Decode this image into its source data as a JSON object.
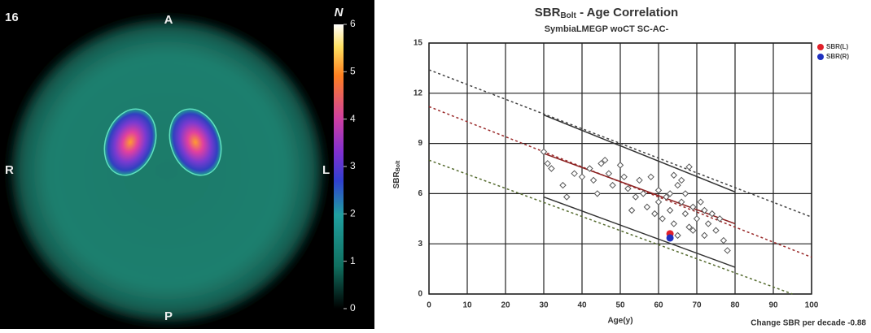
{
  "scan": {
    "slice": "16",
    "anterior": "A",
    "posterior": "P",
    "right": "R",
    "left": "L",
    "colorbar_label": "N",
    "colorbar": {
      "lim": [
        0,
        6
      ],
      "ticks": [
        0,
        1,
        2,
        3,
        4,
        5,
        6
      ]
    }
  },
  "chart_data": {
    "type": "scatter",
    "title": {
      "main": "SBR",
      "sub": "Bolt",
      "rest": " - Age Correlation"
    },
    "subtitle": "SymbiaLMEGP woCT SC-AC-",
    "x_label": "Age(y)",
    "y_label": {
      "main": "SBR",
      "sub": "Bolt"
    },
    "footer": "Change SBR per decade -0.88",
    "xlim": [
      0,
      100
    ],
    "xticks": [
      0,
      10,
      20,
      30,
      40,
      50,
      60,
      70,
      80,
      90,
      100
    ],
    "ylim": [
      0,
      15
    ],
    "yticks": [
      0,
      3,
      6,
      9,
      12,
      15
    ],
    "grid": true,
    "legend": "top-right",
    "reference": {
      "x": [
        30,
        31,
        32,
        35,
        36,
        38,
        40,
        42,
        43,
        44,
        45,
        46,
        47,
        48,
        50,
        51,
        52,
        53,
        54,
        55,
        56,
        57,
        58,
        59,
        60,
        60,
        61,
        62,
        63,
        63,
        64,
        64,
        65,
        65,
        66,
        66,
        67,
        67,
        68,
        68,
        69,
        69,
        70,
        71,
        72,
        72,
        73,
        74,
        75,
        76,
        77,
        78
      ],
      "values": [
        8.5,
        7.8,
        7.5,
        6.5,
        5.8,
        7.2,
        7.0,
        7.5,
        6.8,
        6.0,
        7.8,
        8.0,
        7.2,
        6.5,
        7.7,
        7.0,
        6.3,
        5.0,
        5.8,
        6.8,
        6.0,
        5.2,
        7.0,
        4.8,
        6.2,
        5.5,
        4.5,
        5.8,
        6.0,
        5.0,
        7.1,
        4.2,
        6.5,
        3.5,
        5.5,
        6.8,
        4.8,
        6.0,
        7.6,
        4.0,
        5.2,
        3.8,
        4.5,
        5.5,
        5.0,
        3.5,
        4.2,
        4.8,
        3.8,
        4.5,
        3.2,
        2.6
      ]
    },
    "series": [
      {
        "name": "SBR(L)",
        "color": "#e0202a",
        "x": [
          63
        ],
        "values": [
          3.6
        ]
      },
      {
        "name": "SBR(R)",
        "color": "#2030c0",
        "x": [
          63
        ],
        "values": [
          3.35
        ]
      }
    ],
    "lines": [
      {
        "x": [
          0,
          100
        ],
        "y": [
          13.4,
          4.6
        ],
        "color": "#444",
        "dashed": true
      },
      {
        "x": [
          0,
          100
        ],
        "y": [
          11.2,
          2.2
        ],
        "color": "#9a2a2a",
        "dashed": true
      },
      {
        "x": [
          0,
          95
        ],
        "y": [
          8.0,
          0
        ],
        "color": "#556b2f",
        "dashed": true
      },
      {
        "x": [
          30,
          80
        ],
        "y": [
          10.7,
          6.1
        ],
        "color": "#333",
        "dashed": false
      },
      {
        "x": [
          30,
          80
        ],
        "y": [
          8.4,
          4.2
        ],
        "color": "#8a2020",
        "dashed": false
      },
      {
        "x": [
          30,
          80
        ],
        "y": [
          5.8,
          1.6
        ],
        "color": "#333",
        "dashed": false
      }
    ]
  }
}
